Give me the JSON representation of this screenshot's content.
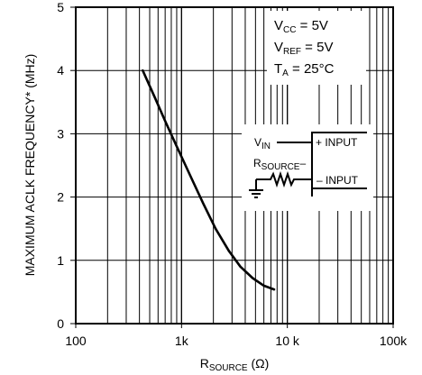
{
  "chart_data": {
    "type": "line",
    "xscale": "log",
    "xlim": [
      100,
      100000
    ],
    "ylim": [
      0,
      5
    ],
    "grid": true,
    "xticks": [
      {
        "value": 100,
        "label": "100"
      },
      {
        "value": 1000,
        "label": "1k"
      },
      {
        "value": 10000,
        "label": "10 k"
      },
      {
        "value": 100000,
        "label": "100k"
      }
    ],
    "yticks": [
      {
        "value": 0,
        "label": "0"
      },
      {
        "value": 1,
        "label": "1"
      },
      {
        "value": 2,
        "label": "2"
      },
      {
        "value": 3,
        "label": "3"
      },
      {
        "value": 4,
        "label": "4"
      },
      {
        "value": 5,
        "label": "5"
      }
    ],
    "xlabel": {
      "main": "R",
      "sub": "SOURCE",
      "unit": " (Ω)"
    },
    "ylabel": "MAXIMUM ACLK FREQUENCY* (MHz)",
    "series": [
      {
        "x": [
          430,
          550,
          700,
          900,
          1200,
          1600,
          2100,
          2800,
          3600,
          4700,
          6000,
          7500
        ],
        "y": [
          4.0,
          3.6,
          3.2,
          2.8,
          2.35,
          1.9,
          1.5,
          1.15,
          0.9,
          0.72,
          0.6,
          0.54
        ]
      }
    ],
    "conditions": [
      {
        "main": "V",
        "sub": "CC",
        "rest": " = 5V"
      },
      {
        "main": "V",
        "sub": "REF",
        "rest": " = 5V"
      },
      {
        "main": "T",
        "sub": "A",
        "rest": " = 25°C"
      }
    ],
    "inset": {
      "vin": {
        "main": "V",
        "sub": "IN"
      },
      "rsource": {
        "main": "R",
        "sub": "SOURCE",
        "rest": "–"
      },
      "plus_input": "+ INPUT",
      "minus_input": "– INPUT"
    }
  }
}
